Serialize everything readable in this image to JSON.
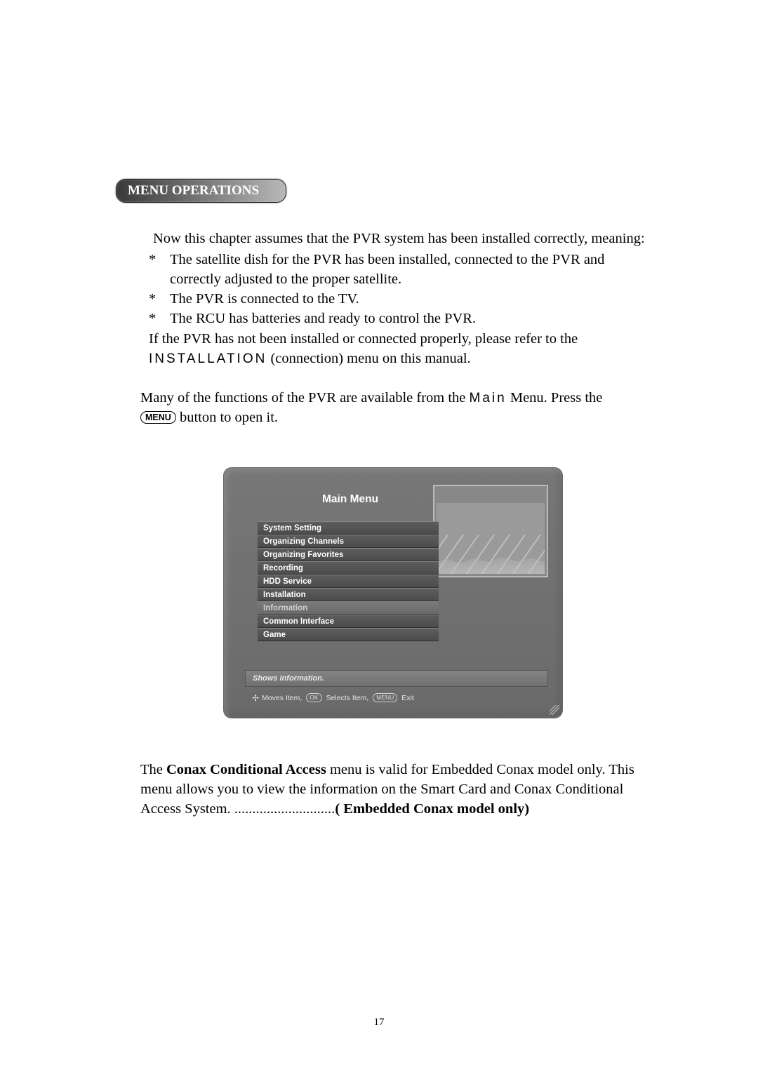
{
  "section_heading": "MENU OPERATIONS",
  "intro": {
    "line1": "Now this chapter assumes that the PVR system has been installed correctly, meaning:",
    "bullet1": "The satellite dish for the PVR has been installed, connected to the PVR and correctly adjusted to the proper satellite.",
    "bullet2": "The PVR is connected to the TV.",
    "bullet3": "The RCU has batteries and ready to control the PVR.",
    "after_bullets_1": "If the PVR has not been installed or connected properly, please refer to the ",
    "install_label": "INSTALLATION",
    "after_bullets_2": " (connection) menu on this manual."
  },
  "functions_para": {
    "before_main": "Many of the functions of the PVR are available from the ",
    "main_label": "Main",
    "after_main": " Menu. Press the ",
    "menu_button_label": "MENU",
    "after_menu": " button to open it."
  },
  "screenshot": {
    "title": "Main Menu",
    "items": [
      "System Setting",
      "Organizing Channels",
      "Organizing Favorites",
      "Recording",
      "HDD Service",
      "Installation",
      "Information",
      "Common Interface",
      "Game"
    ],
    "selected_index": 6,
    "hint": "Shows information.",
    "footer_moves": " Moves Item, ",
    "footer_ok": "OK",
    "footer_selects": " Selects Item, ",
    "footer_menu": "MENU",
    "footer_exit": " Exit"
  },
  "conax": {
    "before_bold1": "The ",
    "bold1": "Conax Conditional Access",
    "after_bold1": " menu is valid for Embedded Conax model only. This menu allows you to view the information on the Smart Card and Conax Conditional Access System.  ............................",
    "bold2": "( Embedded Conax model only)"
  },
  "page_number": "17"
}
